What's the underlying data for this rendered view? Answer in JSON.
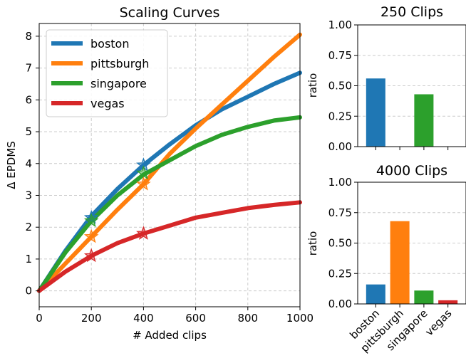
{
  "chart_data": [
    {
      "type": "line",
      "title": "Scaling Curves",
      "xlabel": "# Added clips",
      "ylabel": "Δ EPDMS",
      "xlim": [
        0,
        1000
      ],
      "ylim": [
        -0.5,
        8.4
      ],
      "xticks": [
        "0",
        "200",
        "400",
        "600",
        "800",
        "1000"
      ],
      "yticks": [
        "0",
        "1",
        "2",
        "3",
        "4",
        "5",
        "6",
        "7",
        "8"
      ],
      "grid": true,
      "legend": "top-left",
      "series": [
        {
          "name": "boston",
          "color": "#1f77b4",
          "x": [
            0,
            100,
            200,
            300,
            400,
            500,
            600,
            700,
            800,
            900,
            1000
          ],
          "y": [
            0,
            1.25,
            2.35,
            3.2,
            3.95,
            4.6,
            5.2,
            5.7,
            6.1,
            6.5,
            6.85
          ],
          "markers": [
            {
              "x": 200,
              "y": 2.3
            },
            {
              "x": 400,
              "y": 3.95
            }
          ]
        },
        {
          "name": "pittsburgh",
          "color": "#ff7f0e",
          "x": [
            0,
            100,
            200,
            300,
            400,
            500,
            600,
            700,
            800,
            900,
            1000
          ],
          "y": [
            0,
            0.85,
            1.7,
            2.55,
            3.35,
            4.3,
            5.1,
            5.85,
            6.6,
            7.35,
            8.05
          ],
          "markers": [
            {
              "x": 200,
              "y": 1.7
            },
            {
              "x": 400,
              "y": 3.35
            }
          ]
        },
        {
          "name": "singapore",
          "color": "#2ca02c",
          "x": [
            0,
            100,
            200,
            300,
            400,
            500,
            600,
            700,
            800,
            900,
            1000
          ],
          "y": [
            0,
            1.2,
            2.2,
            3.0,
            3.65,
            4.1,
            4.55,
            4.9,
            5.15,
            5.35,
            5.45
          ],
          "markers": [
            {
              "x": 200,
              "y": 2.2
            },
            {
              "x": 400,
              "y": 3.7
            }
          ]
        },
        {
          "name": "vegas",
          "color": "#d62728",
          "x": [
            0,
            100,
            200,
            300,
            400,
            500,
            600,
            700,
            800,
            900,
            1000
          ],
          "y": [
            0,
            0.6,
            1.1,
            1.5,
            1.8,
            2.05,
            2.3,
            2.45,
            2.6,
            2.7,
            2.78
          ],
          "markers": [
            {
              "x": 200,
              "y": 1.1
            },
            {
              "x": 400,
              "y": 1.8
            }
          ]
        }
      ]
    },
    {
      "type": "bar",
      "title": "250 Clips",
      "ylabel": "ratio",
      "ylim": [
        0,
        1
      ],
      "yticks": [
        "0.00",
        "0.25",
        "0.50",
        "0.75",
        "1.00"
      ],
      "grid": true,
      "categories": [
        "boston",
        "pittsburgh",
        "singapore",
        "vegas"
      ],
      "values": [
        0.56,
        0,
        0.43,
        0
      ],
      "colors": [
        "#1f77b4",
        "#ff7f0e",
        "#2ca02c",
        "#d62728"
      ]
    },
    {
      "type": "bar",
      "title": "4000 Clips",
      "ylabel": "ratio",
      "ylim": [
        0,
        1
      ],
      "yticks": [
        "0.00",
        "0.25",
        "0.50",
        "0.75",
        "1.00"
      ],
      "grid": true,
      "categories": [
        "boston",
        "pittsburgh",
        "singapore",
        "vegas"
      ],
      "values": [
        0.16,
        0.68,
        0.11,
        0.03
      ],
      "colors": [
        "#1f77b4",
        "#ff7f0e",
        "#2ca02c",
        "#d62728"
      ]
    }
  ]
}
